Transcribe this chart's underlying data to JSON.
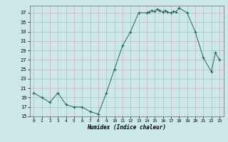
{
  "x": [
    0,
    1,
    2,
    3,
    4,
    5,
    6,
    7,
    8,
    9,
    10,
    11,
    12,
    13,
    14,
    14.3,
    14.6,
    15,
    15.3,
    15.6,
    16,
    16.3,
    16.6,
    17,
    17.3,
    17.6,
    18,
    19,
    20,
    21,
    22,
    22.5,
    23
  ],
  "y": [
    20,
    19,
    18,
    20,
    17.5,
    17,
    17,
    16,
    15.5,
    20,
    25,
    30,
    33,
    37,
    37,
    37.2,
    37.5,
    37.3,
    37.8,
    37.5,
    37.2,
    37.5,
    37.1,
    37,
    37.3,
    37.2,
    38,
    37,
    33,
    27.5,
    24.5,
    28.5,
    27
  ],
  "xlabel": "Humidex (Indice chaleur)",
  "xlim": [
    -0.5,
    23.5
  ],
  "ylim": [
    15,
    38.5
  ],
  "yticks": [
    15,
    17,
    19,
    21,
    23,
    25,
    27,
    29,
    31,
    33,
    35,
    37
  ],
  "xticks": [
    0,
    1,
    2,
    3,
    4,
    5,
    6,
    7,
    8,
    9,
    10,
    11,
    12,
    13,
    14,
    15,
    16,
    17,
    18,
    19,
    20,
    21,
    22,
    23
  ],
  "line_color": "#1a6b5a",
  "marker": "+",
  "bg_color": "#cce8e8",
  "grid_color": "#c8b4b4",
  "fig_bg": "#cce8e8"
}
